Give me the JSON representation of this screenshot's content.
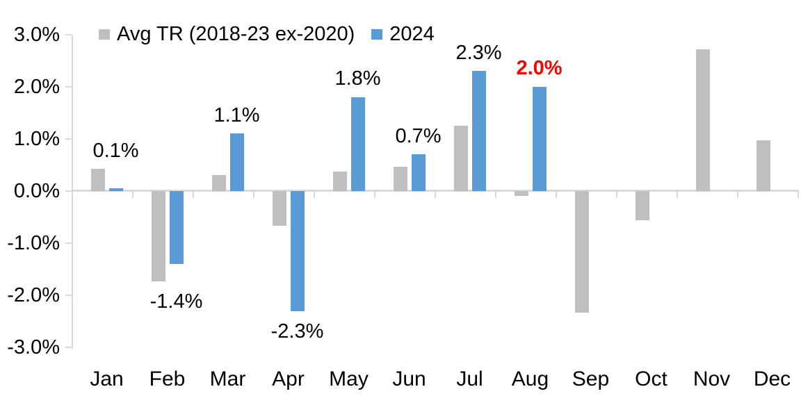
{
  "chart_data": {
    "type": "bar",
    "title": "",
    "xlabel": "",
    "ylabel": "",
    "categories": [
      "Jan",
      "Feb",
      "Mar",
      "Apr",
      "May",
      "Jun",
      "Jul",
      "Aug",
      "Sep",
      "Oct",
      "Nov",
      "Dec"
    ],
    "series": [
      {
        "name": "Avg TR (2018-23 ex-2020)",
        "color": "#bfbfbf",
        "values": [
          0.42,
          -1.73,
          0.3,
          -0.66,
          0.37,
          0.47,
          1.25,
          -0.09,
          -2.33,
          -0.56,
          2.72,
          0.97
        ]
      },
      {
        "name": "2024",
        "color": "#5b9bd5",
        "values": [
          0.05,
          -1.4,
          1.1,
          -2.3,
          1.8,
          0.7,
          2.3,
          2.0,
          null,
          null,
          null,
          null
        ]
      }
    ],
    "data_labels": [
      {
        "index": 0,
        "text": "0.1%",
        "color": "#000000",
        "bold": false
      },
      {
        "index": 1,
        "text": "-1.4%",
        "color": "#000000",
        "bold": false
      },
      {
        "index": 2,
        "text": "1.1%",
        "color": "#000000",
        "bold": false
      },
      {
        "index": 3,
        "text": "-2.3%",
        "color": "#000000",
        "bold": false
      },
      {
        "index": 4,
        "text": "1.8%",
        "color": "#000000",
        "bold": false
      },
      {
        "index": 5,
        "text": "0.7%",
        "color": "#000000",
        "bold": false
      },
      {
        "index": 6,
        "text": "2.3%",
        "color": "#000000",
        "bold": false
      },
      {
        "index": 7,
        "text": "2.0%",
        "color": "#ff0000",
        "bold": true
      }
    ],
    "y_axis": {
      "tick_labels": [
        "3.0%",
        "2.0%",
        "1.0%",
        "0.0%",
        "-1.0%",
        "-2.0%",
        "-3.0%"
      ],
      "min": -3.0,
      "max": 3.0,
      "step": 1.0
    },
    "legend_position": "top",
    "grid": false,
    "colors": {
      "axis": "#d9d9d9",
      "text": "#000000",
      "highlight_label": "#ff0000",
      "background": "#ffffff"
    }
  }
}
